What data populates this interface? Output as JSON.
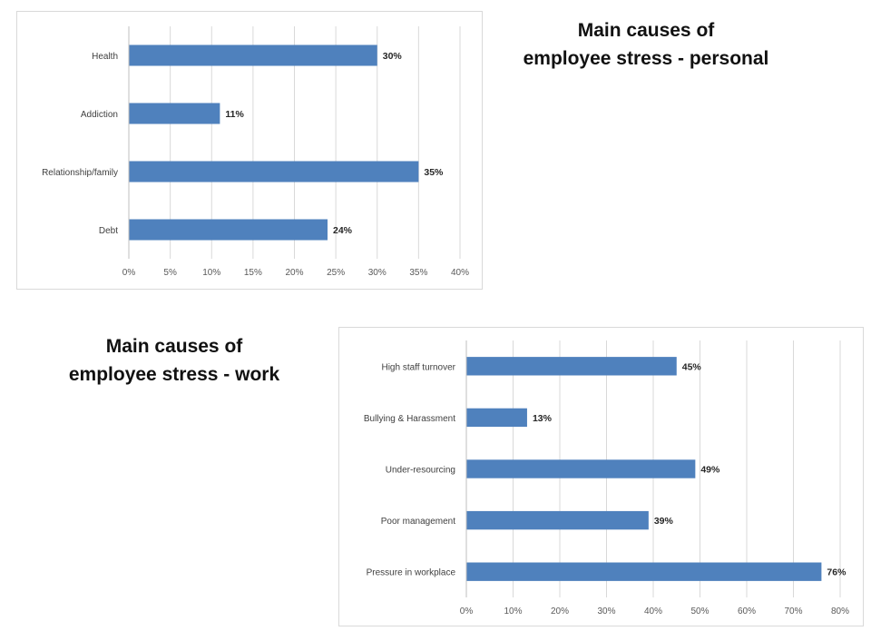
{
  "chart_data": [
    {
      "type": "bar",
      "orientation": "horizontal",
      "title": "Main causes of employee stress - personal",
      "title_lines": [
        "Main causes of",
        "employee stress - personal"
      ],
      "categories": [
        "Health",
        "Addiction",
        "Relationship/family",
        "Debt"
      ],
      "values": [
        30,
        11,
        35,
        24
      ],
      "value_labels": [
        "30%",
        "11%",
        "35%",
        "24%"
      ],
      "xlim": [
        0,
        40
      ],
      "xticks": [
        0,
        5,
        10,
        15,
        20,
        25,
        30,
        35,
        40
      ],
      "xtick_labels": [
        "0%",
        "5%",
        "10%",
        "15%",
        "20%",
        "25%",
        "30%",
        "35%",
        "40%"
      ],
      "xlabel": "",
      "ylabel": "",
      "grid": true,
      "legend": "none",
      "bar_color": "#4f81bd"
    },
    {
      "type": "bar",
      "orientation": "horizontal",
      "title": "Main causes of employee stress - work",
      "title_lines": [
        "Main causes of",
        "employee stress - work"
      ],
      "categories": [
        "High staff turnover",
        "Bullying & Harassment",
        "Under-resourcing",
        "Poor management",
        "Pressure in workplace"
      ],
      "values": [
        45,
        13,
        49,
        39,
        76
      ],
      "value_labels": [
        "45%",
        "13%",
        "49%",
        "39%",
        "76%"
      ],
      "xlim": [
        0,
        80
      ],
      "xticks": [
        0,
        10,
        20,
        30,
        40,
        50,
        60,
        70,
        80
      ],
      "xtick_labels": [
        "0%",
        "10%",
        "20%",
        "30%",
        "40%",
        "50%",
        "60%",
        "70%",
        "80%"
      ],
      "xlabel": "",
      "ylabel": "",
      "grid": true,
      "legend": "none",
      "bar_color": "#4f81bd"
    }
  ]
}
